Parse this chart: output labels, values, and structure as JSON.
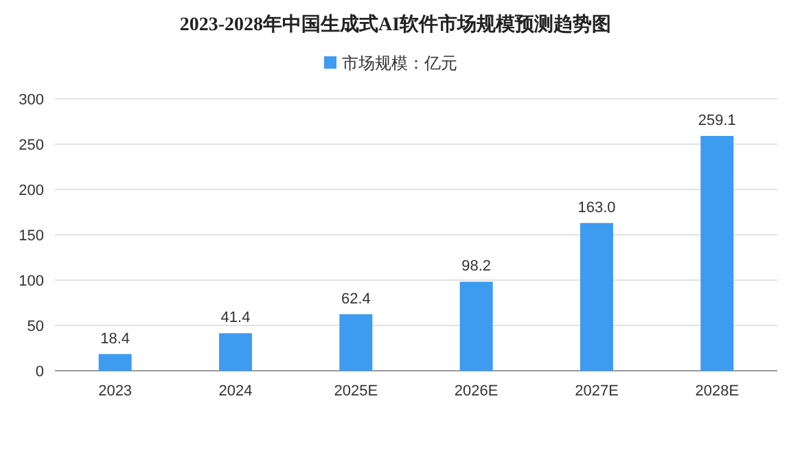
{
  "chart_data": {
    "type": "bar",
    "title": "2023-2028年中国生成式AI软件市场规模预测趋势图",
    "categories": [
      "2023",
      "2024",
      "2025E",
      "2026E",
      "2027E",
      "2028E"
    ],
    "series": [
      {
        "name": "市场规模：亿元",
        "color": "#3d9bf0",
        "values": [
          18.4,
          41.4,
          62.4,
          98.2,
          163.0,
          259.1
        ],
        "value_labels": [
          "18.4",
          "41.4",
          "62.4",
          "98.2",
          "163.0",
          "259.1"
        ]
      }
    ],
    "ylim": [
      0,
      300
    ],
    "yticks": [
      0,
      50,
      100,
      150,
      200,
      250,
      300
    ],
    "grid": "y",
    "legend": "top"
  }
}
